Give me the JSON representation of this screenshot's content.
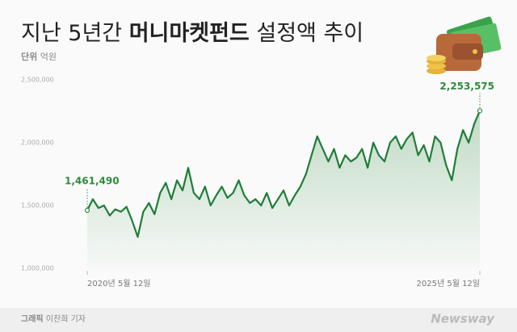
{
  "chart_data": {
    "type": "line",
    "title_prefix": "지난 5년간",
    "title_highlight": "머니마켓펀드",
    "title_suffix": "설정액 추이",
    "unit_label": "단위",
    "unit": "억원",
    "credit_label": "그래픽",
    "credit": "이찬희 기자",
    "brand": "Newsway",
    "color": "#1f7d38",
    "label_color": "#2e8b3e",
    "categories": [
      "2020년 5월 12일",
      null,
      null,
      null,
      null,
      null,
      null,
      null,
      null,
      null,
      null,
      null,
      null,
      null,
      null,
      null,
      null,
      null,
      null,
      null,
      null,
      null,
      null,
      null,
      null,
      null,
      null,
      null,
      null,
      null,
      null,
      null,
      null,
      null,
      null,
      null,
      null,
      null,
      null,
      null,
      null,
      null,
      null,
      null,
      null,
      null,
      null,
      null,
      null,
      null,
      null,
      null,
      null,
      null,
      null,
      null,
      null,
      null,
      null,
      null,
      null,
      null,
      null,
      null,
      null,
      null,
      null,
      null,
      null,
      null,
      "2025년 5월 12일"
    ],
    "values": [
      1461490,
      1550000,
      1480000,
      1500000,
      1420000,
      1470000,
      1450000,
      1490000,
      1380000,
      1250000,
      1450000,
      1520000,
      1430000,
      1600000,
      1680000,
      1550000,
      1700000,
      1620000,
      1800000,
      1600000,
      1550000,
      1650000,
      1500000,
      1580000,
      1650000,
      1560000,
      1600000,
      1700000,
      1580000,
      1520000,
      1550000,
      1500000,
      1600000,
      1480000,
      1550000,
      1620000,
      1500000,
      1580000,
      1650000,
      1750000,
      1900000,
      2050000,
      1950000,
      1850000,
      1950000,
      1800000,
      1900000,
      1850000,
      1880000,
      1950000,
      1800000,
      2000000,
      1900000,
      1850000,
      2000000,
      2050000,
      1950000,
      2030000,
      2080000,
      1900000,
      1980000,
      1850000,
      2050000,
      2000000,
      1820000,
      1700000,
      1950000,
      2100000,
      2000000,
      2150000,
      2253575
    ],
    "value_labels": [
      "1,461,490",
      null,
      null,
      null,
      null,
      null,
      null,
      null,
      null,
      null,
      null,
      null,
      null,
      null,
      null,
      null,
      null,
      null,
      null,
      null,
      null,
      null,
      null,
      null,
      null,
      null,
      null,
      null,
      null,
      null,
      null,
      null,
      null,
      null,
      null,
      null,
      null,
      null,
      null,
      null,
      null,
      null,
      null,
      null,
      null,
      null,
      null,
      null,
      null,
      null,
      null,
      null,
      null,
      null,
      null,
      null,
      null,
      null,
      null,
      null,
      null,
      null,
      null,
      null,
      null,
      null,
      null,
      null,
      null,
      null,
      "2,253,575"
    ],
    "ylim": [
      1000000,
      2500000
    ],
    "yticks": [
      {
        "value": 1000000,
        "label": "1,000,000"
      },
      {
        "value": 1500000,
        "label": "1,500,000"
      },
      {
        "value": 2000000,
        "label": "2,000,000"
      },
      {
        "value": 2500000,
        "label": "2,500,000"
      }
    ],
    "grid": false
  }
}
